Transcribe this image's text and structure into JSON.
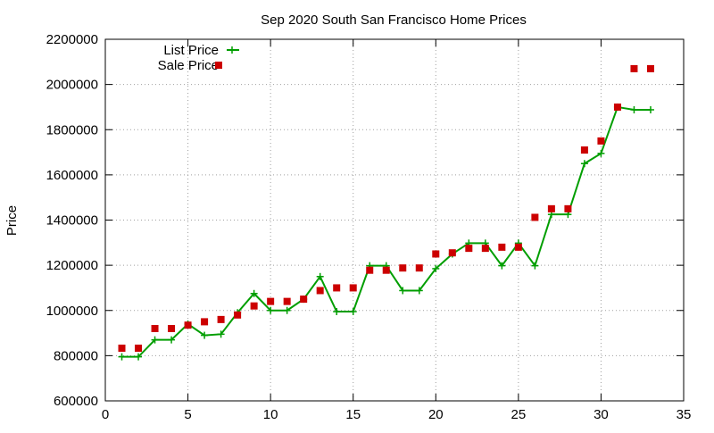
{
  "chart_data": {
    "type": "line",
    "title": "Sep 2020 South San Francisco Home Prices",
    "xlabel": "",
    "ylabel": "Price",
    "xlim": [
      0,
      35
    ],
    "ylim": [
      600000,
      2200000
    ],
    "xticks": [
      "0",
      "5",
      "10",
      "15",
      "20",
      "25",
      "30",
      "35"
    ],
    "yticks": [
      "600000",
      "800000",
      "1000000",
      "1200000",
      "1400000",
      "1600000",
      "1800000",
      "2000000",
      "2200000"
    ],
    "grid": true,
    "legend_position": "top-left",
    "series": [
      {
        "name": "List Price",
        "style": "line-points",
        "color": "#009e00",
        "marker": "plus",
        "x": [
          1,
          2,
          3,
          4,
          5,
          6,
          7,
          8,
          9,
          10,
          11,
          12,
          13,
          14,
          15,
          16,
          17,
          18,
          19,
          20,
          21,
          22,
          23,
          24,
          25,
          26,
          27,
          28,
          29,
          30,
          31,
          32,
          33
        ],
        "values": [
          795000,
          795000,
          870000,
          870000,
          940000,
          890000,
          895000,
          990000,
          1075000,
          1000000,
          1000000,
          1050000,
          1150000,
          995000,
          995000,
          1198000,
          1198000,
          1088000,
          1088000,
          1185000,
          1250000,
          1298000,
          1298000,
          1198000,
          1298000,
          1198000,
          1425000,
          1425000,
          1650000,
          1695000,
          1900000,
          1888000,
          1888000
        ]
      },
      {
        "name": "Sale Price",
        "style": "points",
        "color": "#cc0000",
        "marker": "square",
        "x": [
          1,
          2,
          3,
          4,
          5,
          6,
          7,
          8,
          9,
          10,
          11,
          12,
          13,
          14,
          15,
          16,
          17,
          18,
          19,
          20,
          21,
          22,
          23,
          24,
          25,
          26,
          27,
          28,
          29,
          30,
          31,
          32,
          33
        ],
        "values": [
          833000,
          833000,
          920000,
          920000,
          935000,
          950000,
          960000,
          980000,
          1020000,
          1040000,
          1040000,
          1050000,
          1088000,
          1100000,
          1100000,
          1178000,
          1178000,
          1188000,
          1188000,
          1250000,
          1255000,
          1275000,
          1275000,
          1280000,
          1280000,
          1412000,
          1450000,
          1450000,
          1710000,
          1750000,
          1900000,
          2070000,
          2070000
        ]
      }
    ]
  }
}
